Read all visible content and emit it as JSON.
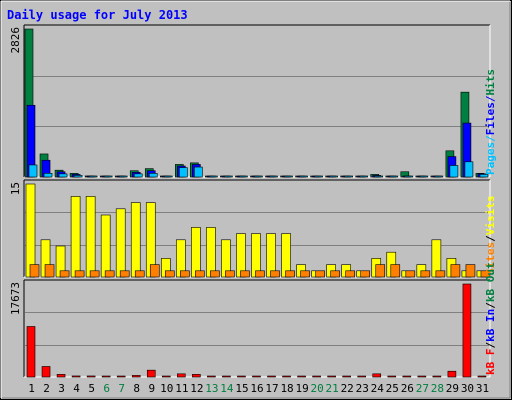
{
  "title": "Daily usage for July 2013",
  "colors": {
    "background": "#c0c0c0",
    "border": "#000000",
    "title": "#0000ff",
    "grid": "#808080",
    "hits": "#008040",
    "files": "#0000ff",
    "pages": "#00c0ff",
    "visits": "#ffff00",
    "sites": "#ff8000",
    "kbf": "#ff0000",
    "kbin": "#0000ff",
    "kbout": "#008040",
    "weekend": "#008040"
  },
  "chart_data": [
    {
      "type": "bar",
      "name": "hits-files-pages",
      "max_label": "2826",
      "ylim": [
        0,
        2826
      ],
      "legend": [
        "Pages",
        "Files",
        "Hits"
      ],
      "categories": [
        "1",
        "2",
        "3",
        "4",
        "5",
        "6",
        "7",
        "8",
        "9",
        "10",
        "11",
        "12",
        "13",
        "14",
        "15",
        "16",
        "17",
        "18",
        "19",
        "20",
        "21",
        "22",
        "23",
        "24",
        "25",
        "26",
        "27",
        "28",
        "29",
        "30",
        "31"
      ],
      "series": [
        {
          "name": "Hits",
          "values": [
            2826,
            440,
            130,
            70,
            20,
            15,
            15,
            120,
            160,
            15,
            240,
            270,
            15,
            15,
            15,
            15,
            15,
            15,
            15,
            15,
            15,
            15,
            15,
            50,
            15,
            100,
            15,
            15,
            500,
            1620,
            70
          ]
        },
        {
          "name": "Files",
          "values": [
            1370,
            320,
            100,
            50,
            15,
            10,
            10,
            90,
            120,
            10,
            210,
            240,
            10,
            10,
            10,
            10,
            10,
            10,
            10,
            10,
            10,
            10,
            10,
            30,
            10,
            10,
            10,
            10,
            390,
            1030,
            60
          ]
        },
        {
          "name": "Pages",
          "values": [
            230,
            70,
            60,
            30,
            10,
            5,
            5,
            60,
            70,
            5,
            180,
            190,
            5,
            5,
            5,
            5,
            5,
            5,
            5,
            5,
            5,
            5,
            5,
            15,
            5,
            5,
            5,
            5,
            220,
            290,
            50
          ]
        }
      ]
    },
    {
      "type": "bar",
      "name": "visits-sites",
      "max_label": "15",
      "ylim": [
        0,
        15
      ],
      "legend": [
        "Sites",
        "/",
        "Visits"
      ],
      "categories": [
        "1",
        "2",
        "3",
        "4",
        "5",
        "6",
        "7",
        "8",
        "9",
        "10",
        "11",
        "12",
        "13",
        "14",
        "15",
        "16",
        "17",
        "18",
        "19",
        "20",
        "21",
        "22",
        "23",
        "24",
        "25",
        "26",
        "27",
        "28",
        "29",
        "30",
        "31"
      ],
      "series": [
        {
          "name": "Visits",
          "values": [
            15,
            6,
            5,
            13,
            13,
            10,
            11,
            12,
            12,
            3,
            6,
            8,
            8,
            6,
            7,
            7,
            7,
            7,
            2,
            1,
            2,
            2,
            1,
            3,
            4,
            1,
            2,
            6,
            3,
            1,
            1
          ]
        },
        {
          "name": "Sites",
          "values": [
            2,
            2,
            1,
            1,
            1,
            1,
            1,
            1,
            2,
            1,
            1,
            1,
            1,
            1,
            1,
            1,
            1,
            1,
            1,
            1,
            1,
            1,
            1,
            2,
            2,
            1,
            1,
            1,
            2,
            2,
            1
          ]
        }
      ]
    },
    {
      "type": "bar",
      "name": "kbytes",
      "max_label": "17673",
      "ylim": [
        0,
        17673
      ],
      "legend": [
        "kB F",
        "/",
        "kB In",
        "/",
        "kB Out"
      ],
      "categories": [
        "1",
        "2",
        "3",
        "4",
        "5",
        "6",
        "7",
        "8",
        "9",
        "10",
        "11",
        "12",
        "13",
        "14",
        "15",
        "16",
        "17",
        "18",
        "19",
        "20",
        "21",
        "22",
        "23",
        "24",
        "25",
        "26",
        "27",
        "28",
        "29",
        "30",
        "31"
      ],
      "series": [
        {
          "name": "kB F",
          "values": [
            9600,
            2000,
            500,
            200,
            200,
            150,
            150,
            300,
            1300,
            150,
            600,
            500,
            150,
            150,
            150,
            150,
            150,
            150,
            150,
            150,
            150,
            150,
            150,
            600,
            150,
            150,
            150,
            150,
            1100,
            17673,
            150
          ]
        }
      ]
    }
  ],
  "x_axis": {
    "labels": [
      "1",
      "2",
      "3",
      "4",
      "5",
      "6",
      "7",
      "8",
      "9",
      "10",
      "11",
      "12",
      "13",
      "14",
      "15",
      "16",
      "17",
      "18",
      "19",
      "20",
      "21",
      "22",
      "23",
      "24",
      "25",
      "26",
      "27",
      "28",
      "29",
      "30",
      "31"
    ],
    "weekend_days": [
      "6",
      "7",
      "13",
      "14",
      "20",
      "21",
      "27",
      "28"
    ]
  }
}
